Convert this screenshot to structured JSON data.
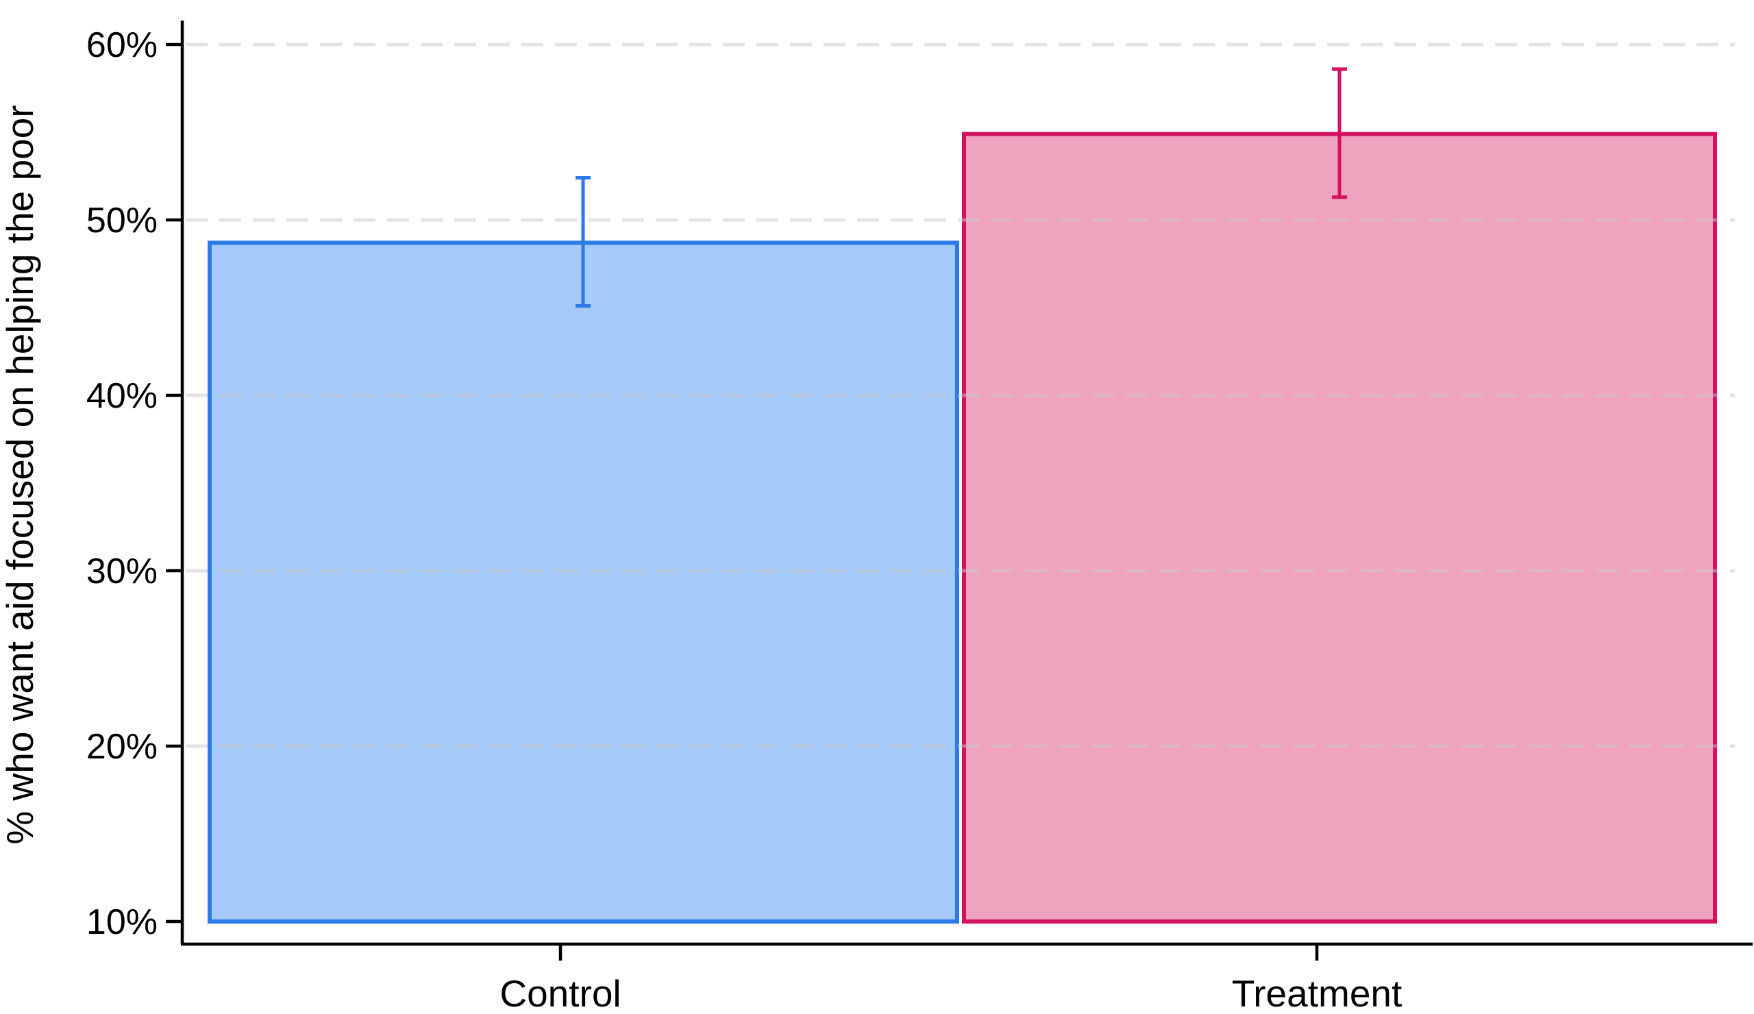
{
  "chart_data": {
    "type": "bar",
    "title": "",
    "xlabel": "",
    "ylabel": "% who want aid focused on helping the poor",
    "categories": [
      "Control",
      "Treatment"
    ],
    "values": [
      48.7,
      54.9
    ],
    "error_bars": {
      "ci_low": [
        45.1,
        51.3
      ],
      "ci_high": [
        52.4,
        58.6
      ]
    },
    "ylim": [
      10,
      60
    ],
    "yticks": [
      10,
      20,
      30,
      40,
      50,
      60
    ],
    "ytick_labels": [
      "10%",
      "20%",
      "30%",
      "40%",
      "50%",
      "60%"
    ],
    "grid": "horizontal-dashed-light-gray-over-bars",
    "legend_position": "none",
    "bar_baseline_percent": 10,
    "series_styles": [
      {
        "name": "Control",
        "fill_color": "#A5C9F8",
        "edge_color": "#2A7AE8"
      },
      {
        "name": "Treatment",
        "fill_color": "#F0A3BF",
        "edge_color": "#D2115F"
      }
    ],
    "axis_color": "#000000",
    "gridline_color": "#c8c8c8"
  }
}
